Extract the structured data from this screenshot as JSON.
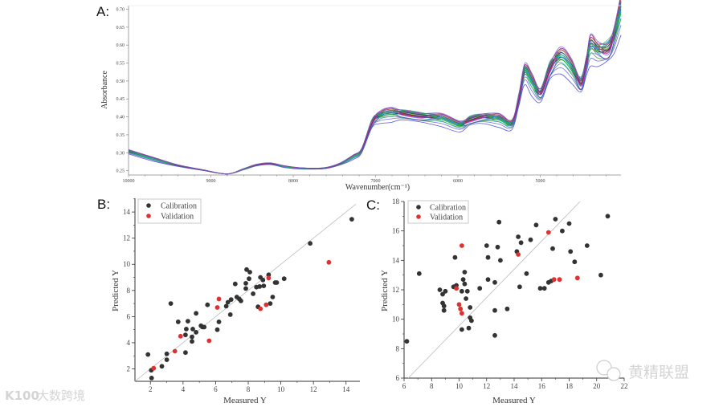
{
  "chart_data": [
    {
      "panel": "A:",
      "type": "line",
      "xlabel": "Wavenumber(cm⁻¹)",
      "ylabel": "Absorbance",
      "xlim": [
        10000,
        4020
      ],
      "ylim": [
        0.238,
        0.71
      ],
      "xticks": [
        10000,
        9000,
        8000,
        7000,
        6000,
        5000
      ],
      "yticks": [
        "0.25",
        "0.30",
        "0.35",
        "0.40",
        "0.45",
        "0.50",
        "0.55",
        "0.60",
        "0.65",
        "0.70"
      ],
      "mean_spectrum": {
        "x": [
          10000,
          9700,
          9400,
          9100,
          8800,
          8600,
          8450,
          8273,
          8100,
          7900,
          7630,
          7450,
          7270,
          7170,
          7044,
          6950,
          6810,
          6683,
          6450,
          6200,
          5980,
          5850,
          5688,
          5500,
          5346,
          5260,
          5190,
          5100,
          4995,
          4880,
          4751,
          4620,
          4507,
          4440,
          4390,
          4300,
          4176,
          4100,
          4020
        ],
        "y": [
          0.305,
          0.284,
          0.265,
          0.252,
          0.241,
          0.255,
          0.266,
          0.27,
          0.262,
          0.257,
          0.257,
          0.268,
          0.29,
          0.308,
          0.383,
          0.405,
          0.413,
          0.41,
          0.402,
          0.398,
          0.379,
          0.392,
          0.4,
          0.397,
          0.383,
          0.45,
          0.53,
          0.5,
          0.467,
          0.535,
          0.571,
          0.54,
          0.494,
          0.55,
          0.602,
          0.588,
          0.589,
          0.63,
          0.707
        ]
      },
      "spread_factors": [
        -0.13,
        -0.09,
        -0.07,
        -0.05,
        -0.04,
        -0.03,
        -0.02,
        -0.015,
        -0.01,
        -0.005,
        0,
        0.003,
        0.006,
        0.01,
        0.013,
        0.016,
        0.02,
        0.024,
        0.028,
        0.032,
        0.036,
        0.042,
        0.05,
        0.06
      ],
      "series_colors": [
        "#3b3bd6",
        "#5a5ae0",
        "#2e8b57",
        "#9b30a0",
        "#1f77b4",
        "#20b2aa",
        "#00a000",
        "#111111",
        "#c71585",
        "#4169e1",
        "#32cd32",
        "#8a2be2",
        "#008b8b",
        "#556b2f",
        "#ff1493",
        "#00ced1",
        "#228b22",
        "#191970",
        "#9acd32",
        "#800080",
        "#3cb371",
        "#4682b4",
        "#b03060",
        "#6a5acd"
      ]
    },
    {
      "panel": "B:",
      "type": "scatter",
      "xlabel": "Measured Y",
      "ylabel": "Predicted Y",
      "xlim": [
        1.05,
        14.85
      ],
      "ylim": [
        1.05,
        15.05
      ],
      "xticks": [
        2,
        4,
        6,
        8,
        10,
        12,
        14
      ],
      "yticks": [
        2,
        4,
        6,
        8,
        10,
        12,
        14
      ],
      "legend": {
        "position": "top-left",
        "entries": [
          "Calibration",
          "Validation"
        ]
      },
      "ref_line": [
        [
          1.05,
          1.05
        ],
        [
          14.6,
          14.6
        ]
      ],
      "series": [
        {
          "name": "Calibration",
          "color": "#333333",
          "points": [
            [
              1.85,
              3.1
            ],
            [
              2.05,
              1.9
            ],
            [
              2.07,
              1.3
            ],
            [
              2.7,
              2.2
            ],
            [
              3.0,
              3.15
            ],
            [
              3.0,
              2.7
            ],
            [
              3.25,
              7.0
            ],
            [
              3.7,
              5.6
            ],
            [
              4.15,
              3.25
            ],
            [
              4.15,
              4.6
            ],
            [
              4.2,
              5.05
            ],
            [
              4.3,
              5.65
            ],
            [
              4.55,
              4.45
            ],
            [
              4.55,
              4.1
            ],
            [
              4.6,
              5.05
            ],
            [
              4.8,
              4.8
            ],
            [
              4.8,
              6.25
            ],
            [
              5.1,
              5.3
            ],
            [
              5.2,
              5.2
            ],
            [
              5.3,
              5.2
            ],
            [
              5.5,
              6.9
            ],
            [
              6.1,
              5.0
            ],
            [
              6.2,
              5.6
            ],
            [
              6.65,
              6.8
            ],
            [
              6.75,
              7.1
            ],
            [
              6.9,
              6.15
            ],
            [
              6.95,
              7.3
            ],
            [
              7.2,
              8.5
            ],
            [
              7.3,
              7.5
            ],
            [
              7.45,
              7.35
            ],
            [
              7.55,
              7.2
            ],
            [
              7.85,
              8.55
            ],
            [
              7.85,
              8.15
            ],
            [
              7.9,
              9.6
            ],
            [
              8.05,
              8.9
            ],
            [
              8.1,
              9.4
            ],
            [
              8.3,
              7.75
            ],
            [
              8.5,
              8.25
            ],
            [
              8.6,
              6.75
            ],
            [
              8.7,
              8.3
            ],
            [
              8.75,
              9.0
            ],
            [
              8.9,
              8.8
            ],
            [
              8.95,
              8.35
            ],
            [
              9.25,
              9.2
            ],
            [
              9.35,
              7.0
            ],
            [
              9.5,
              7.5
            ],
            [
              9.65,
              8.6
            ],
            [
              9.75,
              8.6
            ],
            [
              10.2,
              8.9
            ],
            [
              11.8,
              11.6
            ],
            [
              14.35,
              13.45
            ]
          ]
        },
        {
          "name": "Validation",
          "color": "#e03030",
          "points": [
            [
              2.2,
              2.05
            ],
            [
              3.5,
              3.35
            ],
            [
              3.85,
              4.5
            ],
            [
              5.6,
              4.15
            ],
            [
              6.1,
              6.7
            ],
            [
              6.2,
              7.35
            ],
            [
              8.75,
              6.6
            ],
            [
              9.1,
              6.9
            ],
            [
              9.25,
              8.95
            ],
            [
              12.95,
              10.15
            ]
          ]
        }
      ]
    },
    {
      "panel": "C:",
      "type": "scatter",
      "xlabel": "Measured Y",
      "ylabel": "Predicted Y",
      "xlim": [
        6,
        22
      ],
      "ylim": [
        6,
        18
      ],
      "xticks": [
        6,
        8,
        10,
        12,
        14,
        16,
        18,
        20,
        22
      ],
      "yticks": [
        6,
        8,
        10,
        12,
        14,
        16,
        18
      ],
      "legend": {
        "position": "top-left",
        "entries": [
          "Calibration",
          "Validation"
        ]
      },
      "ref_line": [
        [
          6.3,
          6
        ],
        [
          18.8,
          18
        ]
      ],
      "series": [
        {
          "name": "Calibration",
          "color": "#333333",
          "points": [
            [
              6.2,
              8.5
            ],
            [
              7.1,
              13.1
            ],
            [
              8.6,
              12.0
            ],
            [
              8.8,
              11.7
            ],
            [
              9.0,
              11.9
            ],
            [
              8.8,
              11.1
            ],
            [
              8.9,
              10.9
            ],
            [
              8.9,
              10.6
            ],
            [
              9.6,
              12.2
            ],
            [
              9.7,
              14.2
            ],
            [
              9.8,
              12.3
            ],
            [
              10.2,
              11.9
            ],
            [
              10.2,
              9.3
            ],
            [
              10.3,
              12.7
            ],
            [
              10.4,
              13.2
            ],
            [
              10.4,
              12.4
            ],
            [
              10.5,
              11.4
            ],
            [
              10.6,
              11.9
            ],
            [
              10.8,
              10.8
            ],
            [
              10.7,
              9.4
            ],
            [
              10.8,
              10.1
            ],
            [
              10.9,
              9.9
            ],
            [
              11.5,
              12.1
            ],
            [
              12.0,
              15.0
            ],
            [
              12.1,
              14.2
            ],
            [
              12.1,
              12.7
            ],
            [
              12.6,
              12.5
            ],
            [
              12.6,
              10.6
            ],
            [
              12.6,
              8.9
            ],
            [
              12.8,
              14.9
            ],
            [
              12.9,
              16.6
            ],
            [
              13.0,
              14.0
            ],
            [
              13.5,
              10.7
            ],
            [
              14.2,
              14.6
            ],
            [
              14.3,
              15.6
            ],
            [
              14.4,
              12.2
            ],
            [
              14.5,
              15.2
            ],
            [
              14.9,
              13.1
            ],
            [
              15.2,
              15.4
            ],
            [
              15.6,
              16.4
            ],
            [
              15.9,
              12.1
            ],
            [
              16.2,
              12.1
            ],
            [
              16.5,
              12.5
            ],
            [
              16.7,
              12.6
            ],
            [
              16.8,
              14.8
            ],
            [
              17.0,
              16.8
            ],
            [
              17.5,
              16.0
            ],
            [
              18.0,
              16.5
            ],
            [
              18.1,
              14.6
            ],
            [
              18.4,
              13.9
            ],
            [
              19.3,
              15.0
            ],
            [
              20.3,
              13.0
            ],
            [
              20.8,
              17.0
            ]
          ]
        },
        {
          "name": "Validation",
          "color": "#e03030",
          "points": [
            [
              9.8,
              12.1
            ],
            [
              10.2,
              15.0
            ],
            [
              10.0,
              11.0
            ],
            [
              10.1,
              10.7
            ],
            [
              10.2,
              10.4
            ],
            [
              14.3,
              14.4
            ],
            [
              16.5,
              15.9
            ],
            [
              16.9,
              12.7
            ],
            [
              17.3,
              12.7
            ],
            [
              18.6,
              12.8
            ]
          ]
        }
      ]
    }
  ],
  "watermarks": {
    "left_logo": "K100",
    "left_text": "大数跨境",
    "right_text": "黄精联盟"
  }
}
